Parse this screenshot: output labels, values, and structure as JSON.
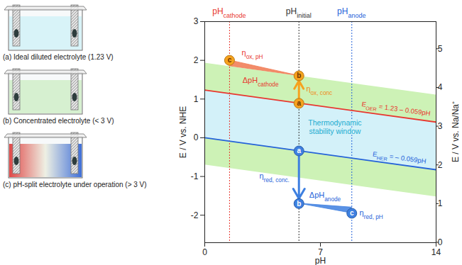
{
  "chart_data": {
    "type": "line",
    "x": [
      0,
      14
    ],
    "xlabel": "pH",
    "xlim": [
      0,
      14
    ],
    "xticks": [
      0,
      7,
      14
    ],
    "ylabel": "E / V vs. NHE",
    "ylim": [
      -2.71,
      3
    ],
    "yticks": [
      -2,
      -1,
      0,
      1,
      2,
      3
    ],
    "y2label": "E / V vs. Na/Na⁺",
    "y2lim": [
      0,
      5.71
    ],
    "y2ticks": [
      0,
      1,
      2,
      3,
      4,
      5
    ],
    "series": [
      {
        "color": "#e8372f",
        "values": [
          1.23,
          0.404
        ],
        "label": [
          {
            "text": "E"
          },
          {
            "sub": "OER"
          },
          {
            "text": " = 1.23 – 0.059pH"
          }
        ],
        "label_at": [
          11.6,
          0.74
        ]
      },
      {
        "color": "#2563d9",
        "values": [
          0,
          -0.826
        ],
        "label": [
          {
            "text": "E"
          },
          {
            "sub": "HER"
          },
          {
            "text": " = – 0.059pH"
          }
        ],
        "label_at": [
          11.8,
          -0.52
        ]
      }
    ],
    "bands": [
      {
        "color": "#cdf2b6",
        "x": [
          0,
          14
        ],
        "upper": [
          1.93,
          1.104
        ],
        "lower": [
          -0.7,
          -1.526
        ]
      },
      {
        "color": "#d3f1f9",
        "x": [
          0,
          14
        ],
        "upper": [
          1.23,
          0.404
        ],
        "lower": [
          0,
          -0.826
        ]
      }
    ],
    "band_label": {
      "lines": [
        "Thermodynamic",
        "stability window"
      ],
      "color": "#22acd0",
      "at": [
        7.9,
        0.38
      ]
    },
    "vlines": [
      {
        "x": 1.5,
        "color": "#e8372f",
        "label": [
          {
            "text": "pH"
          },
          {
            "sub": "cathode"
          }
        ]
      },
      {
        "x": 5.7,
        "color": "#333333",
        "label": [
          {
            "text": "pH"
          },
          {
            "sub": "initial"
          }
        ]
      },
      {
        "x": 8.9,
        "color": "#2563d9",
        "label": [
          {
            "text": "pH"
          },
          {
            "sub": "anode"
          }
        ]
      }
    ],
    "wedges": [
      {
        "color": "#f07850",
        "x": [
          1.5,
          5.7
        ],
        "lower": [
          1.85,
          1.6
        ],
        "upper": [
          2.0,
          1.6
        ]
      },
      {
        "color": "#3d7fe0",
        "x": [
          5.7,
          8.9
        ],
        "lower": [
          -1.7,
          -1.95
        ],
        "upper": [
          -1.7,
          -1.8
        ]
      }
    ],
    "arrows": [
      {
        "from": [
          5.7,
          0.89
        ],
        "to": [
          5.7,
          1.6
        ],
        "color": "#f6a21e"
      },
      {
        "from": [
          5.7,
          -0.34
        ],
        "to": [
          5.7,
          -1.7
        ],
        "color": "#3d7fe0"
      }
    ],
    "markers": [
      {
        "label": "c",
        "x": 1.5,
        "y": 2.0,
        "color": "#f6a21e"
      },
      {
        "label": "b",
        "x": 5.7,
        "y": 1.6,
        "color": "#f6a21e"
      },
      {
        "label": "a",
        "x": 5.7,
        "y": 0.89,
        "color": "#f6a21e"
      },
      {
        "label": "a",
        "x": 5.7,
        "y": -0.34,
        "color": "#3d7fe0"
      },
      {
        "label": "b",
        "x": 5.7,
        "y": -1.7,
        "color": "#3d7fe0"
      },
      {
        "label": "c",
        "x": 8.9,
        "y": -1.95,
        "color": "#3d7fe0"
      }
    ],
    "annotations": [
      {
        "text": [
          {
            "text": "η"
          },
          {
            "sub": "ox, conc"
          }
        ],
        "at": [
          6.95,
          1.25
        ],
        "color": "#f08a1c"
      },
      {
        "text": [
          {
            "text": "ΔpH"
          },
          {
            "sub": "cathode"
          }
        ],
        "at": [
          3.4,
          1.47
        ],
        "color": "#e8372f"
      },
      {
        "text": [
          {
            "text": "η"
          },
          {
            "sub": "ox, pH"
          }
        ],
        "at": [
          2.9,
          2.2
        ],
        "color": "#e8372f"
      },
      {
        "text": [
          {
            "text": "η"
          },
          {
            "sub": "red, conc."
          }
        ],
        "at": [
          4.24,
          -1.0
        ],
        "color": "#2563d9"
      },
      {
        "text": [
          {
            "text": "ΔpH"
          },
          {
            "sub": "anode"
          }
        ],
        "at": [
          7.3,
          -1.48
        ],
        "color": "#2563d9"
      },
      {
        "text": [
          {
            "text": "η"
          },
          {
            "sub": "red, pH"
          }
        ],
        "at": [
          10.1,
          -1.95
        ],
        "color": "#2563d9"
      }
    ]
  },
  "schematics": [
    {
      "caption": "(a) Ideal diluted electrolyte (1.23 V)",
      "color": "#d8f3f8"
    },
    {
      "caption": "(b) Concentrated electrolyte (< 3 V)",
      "color": "#d6f0d0"
    },
    {
      "caption": "(c) pH-split electrolyte under operation (> 3 V)",
      "colors": [
        "#e04848",
        "#eef0e4",
        "#3f6fd8"
      ]
    }
  ]
}
